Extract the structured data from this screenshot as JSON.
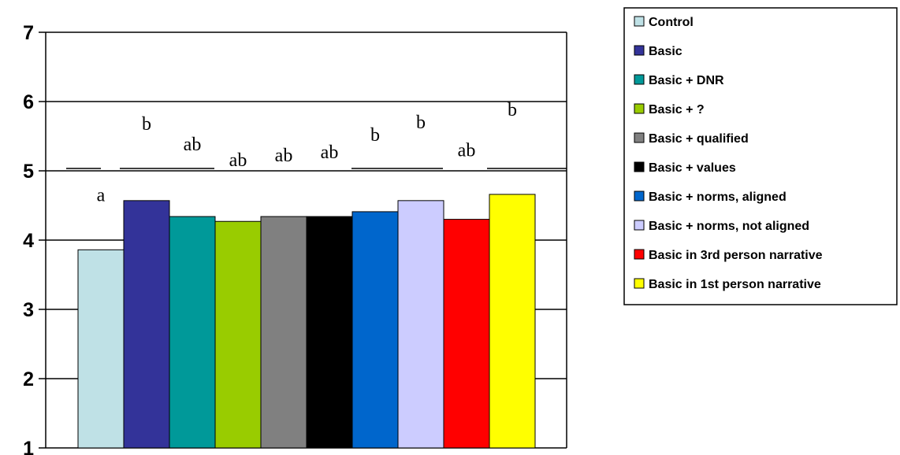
{
  "chart_data": {
    "type": "bar",
    "title": "",
    "xlabel": "",
    "ylabel": "",
    "ylim": [
      1,
      7
    ],
    "yticks": [
      "1",
      "2",
      "3",
      "4",
      "5",
      "6",
      "7"
    ],
    "grid": "horizontal",
    "legend_position": "right",
    "series": [
      {
        "name": "Control",
        "value": 3.86,
        "color": "#bfe1e6",
        "sig": "a"
      },
      {
        "name": "Basic",
        "value": 4.57,
        "color": "#333399",
        "sig": "b"
      },
      {
        "name": "Basic + DNR",
        "value": 4.34,
        "color": "#009999",
        "sig": "ab"
      },
      {
        "name": "Basic + ?",
        "value": 4.27,
        "color": "#99cc00",
        "sig": "ab"
      },
      {
        "name": "Basic + qualified",
        "value": 4.34,
        "color": "#808080",
        "sig": "ab"
      },
      {
        "name": "Basic + values",
        "value": 4.34,
        "color": "#000000",
        "sig": "ab"
      },
      {
        "name": "Basic + norms, aligned",
        "value": 4.41,
        "color": "#0066cc",
        "sig": "b"
      },
      {
        "name": "Basic + norms, not aligned",
        "value": 4.57,
        "color": "#ccccff",
        "sig": "b"
      },
      {
        "name": "Basic in 3rd person narrative",
        "value": 4.3,
        "color": "#ff0000",
        "sig": "ab"
      },
      {
        "name": "Basic in 1st person narrative",
        "value": 4.66,
        "color": "#ffff00",
        "sig": "b"
      }
    ]
  }
}
